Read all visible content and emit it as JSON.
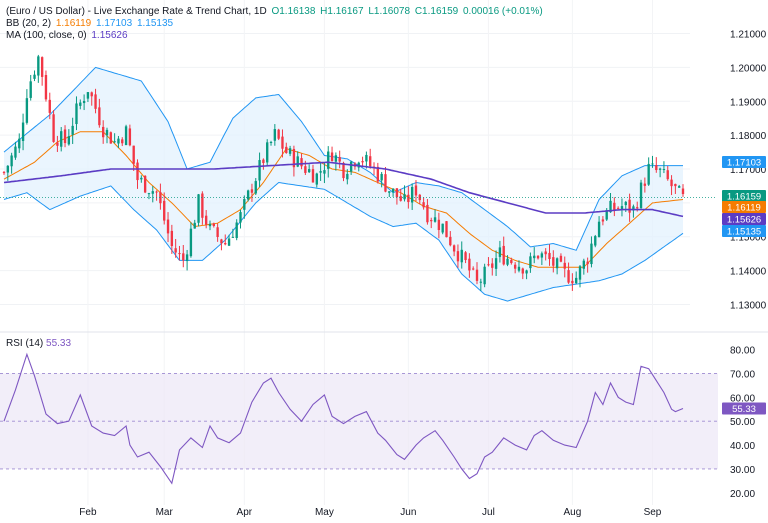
{
  "legend": {
    "title": "(Euro / US Dollar) - Live Exchange Rate & Trend Chart, 1D",
    "open": "O1.16138",
    "high": "H1.16167",
    "low": "L1.16078",
    "close": "C1.16159",
    "change": "0.00016 (+0.01%)",
    "bb_label": "BB (20, 2)",
    "bb_mid": "1.16119",
    "bb_upper": "1.17103",
    "bb_lower": "1.15135",
    "ma_label": "MA (100, close, 0)",
    "ma_value": "1.15626",
    "rsi_label": "RSI (14)",
    "rsi_value": "55.33"
  },
  "colors": {
    "up": "#089981",
    "down": "#f23645",
    "bb_band": "#2196f3",
    "bb_fill": "#e3f2fd",
    "bb_mid": "#f57c00",
    "ma": "#5b3cc4",
    "rsi": "#7e57c2",
    "rsi_band": "#ede7f6"
  },
  "chart_data": [
    {
      "type": "candlestick",
      "title": "(Euro / US Dollar) - Live Exchange Rate & Trend Chart, 1D",
      "ylim": [
        1.126,
        1.214
      ],
      "y_ticks": [
        "1.21000",
        "1.20000",
        "1.19000",
        "1.18000",
        "1.17000",
        "1.16000",
        "1.15000",
        "1.14000",
        "1.13000"
      ],
      "x_ticks": [
        "Feb",
        "Mar",
        "Apr",
        "May",
        "Jun",
        "Jul",
        "Aug",
        "Sep"
      ],
      "price_labels": [
        {
          "label": "1.17103",
          "value": 1.17103,
          "color": "#2196f3"
        },
        {
          "label": "1.16159",
          "value": 1.16159,
          "color": "#089981"
        },
        {
          "label": "1.16119",
          "value": 1.16119,
          "color": "#f57c00"
        },
        {
          "label": "1.15626",
          "value": 1.15626,
          "color": "#5b3cc4"
        },
        {
          "label": "1.15135",
          "value": 1.15135,
          "color": "#2196f3"
        }
      ],
      "close_anchors": [
        [
          0,
          1.169
        ],
        [
          4,
          1.178
        ],
        [
          6,
          1.193
        ],
        [
          9,
          1.203
        ],
        [
          10,
          1.198
        ],
        [
          13,
          1.18
        ],
        [
          16,
          1.178
        ],
        [
          19,
          1.187
        ],
        [
          22,
          1.194
        ],
        [
          26,
          1.182
        ],
        [
          29,
          1.178
        ],
        [
          32,
          1.181
        ],
        [
          35,
          1.167
        ],
        [
          40,
          1.163
        ],
        [
          44,
          1.147
        ],
        [
          47,
          1.143
        ],
        [
          51,
          1.16
        ],
        [
          54,
          1.152
        ],
        [
          58,
          1.148
        ],
        [
          62,
          1.156
        ],
        [
          65,
          1.165
        ],
        [
          68,
          1.173
        ],
        [
          71,
          1.18
        ],
        [
          74,
          1.175
        ],
        [
          78,
          1.171
        ],
        [
          82,
          1.168
        ],
        [
          86,
          1.175
        ],
        [
          89,
          1.17
        ],
        [
          93,
          1.174
        ],
        [
          97,
          1.17
        ],
        [
          101,
          1.164
        ],
        [
          105,
          1.16
        ],
        [
          108,
          1.164
        ],
        [
          111,
          1.157
        ],
        [
          115,
          1.153
        ],
        [
          118,
          1.147
        ],
        [
          121,
          1.142
        ],
        [
          124,
          1.136
        ],
        [
          127,
          1.14
        ],
        [
          130,
          1.145
        ],
        [
          133,
          1.143
        ],
        [
          137,
          1.141
        ],
        [
          140,
          1.145
        ],
        [
          143,
          1.143
        ],
        [
          147,
          1.139
        ],
        [
          150,
          1.138
        ],
        [
          153,
          1.144
        ],
        [
          156,
          1.155
        ],
        [
          159,
          1.158
        ],
        [
          162,
          1.159
        ],
        [
          165,
          1.158
        ],
        [
          169,
          1.17
        ],
        [
          172,
          1.169
        ],
        [
          175,
          1.165
        ],
        [
          178,
          1.161
        ]
      ],
      "bb_upper": [
        [
          0,
          1.175
        ],
        [
          12,
          1.186
        ],
        [
          24,
          1.2
        ],
        [
          36,
          1.196
        ],
        [
          43,
          1.184
        ],
        [
          48,
          1.17
        ],
        [
          54,
          1.172
        ],
        [
          60,
          1.185
        ],
        [
          66,
          1.191
        ],
        [
          72,
          1.192
        ],
        [
          78,
          1.184
        ],
        [
          84,
          1.174
        ],
        [
          90,
          1.173
        ],
        [
          96,
          1.169
        ],
        [
          102,
          1.163
        ],
        [
          108,
          1.166
        ],
        [
          114,
          1.165
        ],
        [
          120,
          1.163
        ],
        [
          126,
          1.158
        ],
        [
          132,
          1.153
        ],
        [
          138,
          1.147
        ],
        [
          144,
          1.148
        ],
        [
          150,
          1.146
        ],
        [
          156,
          1.161
        ],
        [
          162,
          1.168
        ],
        [
          168,
          1.171
        ],
        [
          178,
          1.171
        ]
      ],
      "bb_lower": [
        [
          0,
          1.161
        ],
        [
          6,
          1.163
        ],
        [
          12,
          1.158
        ],
        [
          20,
          1.162
        ],
        [
          28,
          1.165
        ],
        [
          34,
          1.158
        ],
        [
          40,
          1.152
        ],
        [
          46,
          1.143
        ],
        [
          52,
          1.143
        ],
        [
          58,
          1.149
        ],
        [
          66,
          1.16
        ],
        [
          72,
          1.166
        ],
        [
          78,
          1.165
        ],
        [
          84,
          1.164
        ],
        [
          90,
          1.16
        ],
        [
          96,
          1.156
        ],
        [
          102,
          1.153
        ],
        [
          108,
          1.154
        ],
        [
          114,
          1.149
        ],
        [
          120,
          1.139
        ],
        [
          126,
          1.133
        ],
        [
          132,
          1.131
        ],
        [
          138,
          1.133
        ],
        [
          144,
          1.135
        ],
        [
          150,
          1.136
        ],
        [
          156,
          1.137
        ],
        [
          162,
          1.139
        ],
        [
          168,
          1.143
        ],
        [
          178,
          1.151
        ]
      ],
      "bb_mid": [
        [
          0,
          1.167
        ],
        [
          8,
          1.172
        ],
        [
          14,
          1.178
        ],
        [
          20,
          1.181
        ],
        [
          26,
          1.181
        ],
        [
          32,
          1.174
        ],
        [
          38,
          1.166
        ],
        [
          44,
          1.16
        ],
        [
          50,
          1.153
        ],
        [
          56,
          1.154
        ],
        [
          62,
          1.158
        ],
        [
          68,
          1.166
        ],
        [
          74,
          1.176
        ],
        [
          80,
          1.174
        ],
        [
          86,
          1.17
        ],
        [
          92,
          1.169
        ],
        [
          98,
          1.166
        ],
        [
          104,
          1.163
        ],
        [
          110,
          1.159
        ],
        [
          116,
          1.157
        ],
        [
          122,
          1.151
        ],
        [
          128,
          1.146
        ],
        [
          134,
          1.143
        ],
        [
          140,
          1.141
        ],
        [
          146,
          1.141
        ],
        [
          152,
          1.141
        ],
        [
          158,
          1.148
        ],
        [
          164,
          1.154
        ],
        [
          170,
          1.16
        ],
        [
          178,
          1.161
        ]
      ],
      "ma": [
        [
          0,
          1.166
        ],
        [
          15,
          1.168
        ],
        [
          28,
          1.17
        ],
        [
          40,
          1.17
        ],
        [
          55,
          1.17
        ],
        [
          70,
          1.171
        ],
        [
          85,
          1.172
        ],
        [
          100,
          1.17
        ],
        [
          112,
          1.167
        ],
        [
          122,
          1.163
        ],
        [
          132,
          1.16
        ],
        [
          142,
          1.157
        ],
        [
          152,
          1.157
        ],
        [
          162,
          1.158
        ],
        [
          170,
          1.158
        ],
        [
          178,
          1.156
        ]
      ]
    },
    {
      "type": "line",
      "title": "RSI (14)",
      "ylim": [
        17,
        84
      ],
      "y_ticks": [
        "80.00",
        "70.00",
        "60.00",
        "50.00",
        "40.00",
        "30.00",
        "20.00"
      ],
      "band": [
        30,
        70
      ],
      "midline": 50,
      "current": {
        "label": "55.33",
        "value": 55.33
      },
      "values": [
        [
          0,
          50
        ],
        [
          3,
          63
        ],
        [
          6,
          78
        ],
        [
          8,
          69
        ],
        [
          11,
          53
        ],
        [
          14,
          49
        ],
        [
          17,
          50
        ],
        [
          20,
          61
        ],
        [
          23,
          48
        ],
        [
          26,
          45
        ],
        [
          29,
          44
        ],
        [
          32,
          48
        ],
        [
          33,
          40
        ],
        [
          35,
          35
        ],
        [
          38,
          37
        ],
        [
          41,
          31
        ],
        [
          44,
          24
        ],
        [
          46,
          38
        ],
        [
          49,
          43
        ],
        [
          52,
          39
        ],
        [
          54,
          48
        ],
        [
          56,
          43
        ],
        [
          59,
          41
        ],
        [
          62,
          45
        ],
        [
          65,
          58
        ],
        [
          68,
          66
        ],
        [
          70,
          68
        ],
        [
          72,
          62
        ],
        [
          75,
          55
        ],
        [
          78,
          50
        ],
        [
          81,
          57
        ],
        [
          84,
          61
        ],
        [
          86,
          52
        ],
        [
          89,
          49
        ],
        [
          92,
          52
        ],
        [
          95,
          54
        ],
        [
          98,
          45
        ],
        [
          100,
          42
        ],
        [
          103,
          36
        ],
        [
          105,
          34
        ],
        [
          108,
          40
        ],
        [
          110,
          43
        ],
        [
          113,
          46
        ],
        [
          115,
          42
        ],
        [
          118,
          35
        ],
        [
          120,
          30
        ],
        [
          122,
          26
        ],
        [
          124,
          28
        ],
        [
          126,
          35
        ],
        [
          128,
          37
        ],
        [
          131,
          43
        ],
        [
          134,
          40
        ],
        [
          137,
          38
        ],
        [
          139,
          44
        ],
        [
          141,
          46
        ],
        [
          144,
          42
        ],
        [
          147,
          40
        ],
        [
          150,
          39
        ],
        [
          153,
          50
        ],
        [
          155,
          62
        ],
        [
          157,
          57
        ],
        [
          159,
          66
        ],
        [
          161,
          60
        ],
        [
          163,
          58
        ],
        [
          165,
          57
        ],
        [
          167,
          73
        ],
        [
          169,
          72
        ],
        [
          171,
          67
        ],
        [
          173,
          62
        ],
        [
          175,
          55
        ],
        [
          176,
          54
        ],
        [
          178,
          55.3
        ]
      ]
    }
  ]
}
